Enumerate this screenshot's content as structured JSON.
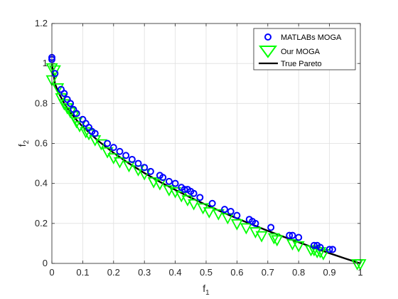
{
  "chart_data": {
    "type": "scatter",
    "xlabel": "f",
    "xlabel_sub": "1",
    "ylabel": "f",
    "ylabel_sub": "2",
    "xlim": [
      0,
      1
    ],
    "ylim": [
      0,
      1.2
    ],
    "xticks": [
      0,
      0.1,
      0.2,
      0.3,
      0.4,
      0.5,
      0.6,
      0.7,
      0.8,
      0.9,
      1
    ],
    "xtick_labels": [
      "0",
      "0.1",
      "0.2",
      "0.3",
      "0.4",
      "0.5",
      "0.6",
      "0.7",
      "0.8",
      "0.9",
      "1"
    ],
    "yticks": [
      0,
      0.2,
      0.4,
      0.6,
      0.8,
      1,
      1.2
    ],
    "ytick_labels": [
      "0",
      "0.2",
      "0.4",
      "0.6",
      "0.8",
      "1",
      "1.2"
    ],
    "grid": true,
    "legend_position": "top-right",
    "series": [
      {
        "name": "MATLABs MOGA",
        "marker": "circle",
        "color": "#0000ff",
        "points": [
          [
            0.0,
            1.03
          ],
          [
            0.0,
            1.02
          ],
          [
            0.01,
            0.95
          ],
          [
            0.03,
            0.87
          ],
          [
            0.04,
            0.85
          ],
          [
            0.05,
            0.82
          ],
          [
            0.06,
            0.8
          ],
          [
            0.07,
            0.77
          ],
          [
            0.08,
            0.75
          ],
          [
            0.1,
            0.72
          ],
          [
            0.11,
            0.7
          ],
          [
            0.12,
            0.68
          ],
          [
            0.13,
            0.66
          ],
          [
            0.14,
            0.65
          ],
          [
            0.18,
            0.6
          ],
          [
            0.2,
            0.58
          ],
          [
            0.22,
            0.56
          ],
          [
            0.24,
            0.54
          ],
          [
            0.26,
            0.52
          ],
          [
            0.28,
            0.5
          ],
          [
            0.3,
            0.48
          ],
          [
            0.32,
            0.46
          ],
          [
            0.35,
            0.44
          ],
          [
            0.36,
            0.43
          ],
          [
            0.38,
            0.41
          ],
          [
            0.4,
            0.4
          ],
          [
            0.42,
            0.38
          ],
          [
            0.43,
            0.37
          ],
          [
            0.44,
            0.37
          ],
          [
            0.45,
            0.36
          ],
          [
            0.46,
            0.35
          ],
          [
            0.48,
            0.33
          ],
          [
            0.52,
            0.3
          ],
          [
            0.56,
            0.27
          ],
          [
            0.58,
            0.26
          ],
          [
            0.6,
            0.24
          ],
          [
            0.64,
            0.22
          ],
          [
            0.65,
            0.21
          ],
          [
            0.66,
            0.2
          ],
          [
            0.71,
            0.18
          ],
          [
            0.77,
            0.14
          ],
          [
            0.78,
            0.14
          ],
          [
            0.8,
            0.13
          ],
          [
            0.85,
            0.09
          ],
          [
            0.86,
            0.09
          ],
          [
            0.87,
            0.08
          ],
          [
            0.9,
            0.07
          ],
          [
            0.91,
            0.07
          ]
        ]
      },
      {
        "name": "Our MOGA",
        "marker": "triangle-down",
        "color": "#00ff00",
        "points": [
          [
            0.0,
            0.98
          ],
          [
            0.01,
            0.97
          ],
          [
            0.0,
            0.92
          ],
          [
            0.02,
            0.88
          ],
          [
            0.03,
            0.83
          ],
          [
            0.04,
            0.8
          ],
          [
            0.05,
            0.78
          ],
          [
            0.06,
            0.76
          ],
          [
            0.07,
            0.74
          ],
          [
            0.08,
            0.71
          ],
          [
            0.09,
            0.69
          ],
          [
            0.11,
            0.66
          ],
          [
            0.12,
            0.65
          ],
          [
            0.14,
            0.62
          ],
          [
            0.16,
            0.6
          ],
          [
            0.18,
            0.56
          ],
          [
            0.2,
            0.53
          ],
          [
            0.22,
            0.51
          ],
          [
            0.25,
            0.49
          ],
          [
            0.28,
            0.47
          ],
          [
            0.3,
            0.45
          ],
          [
            0.33,
            0.41
          ],
          [
            0.35,
            0.4
          ],
          [
            0.38,
            0.37
          ],
          [
            0.4,
            0.36
          ],
          [
            0.42,
            0.34
          ],
          [
            0.44,
            0.32
          ],
          [
            0.46,
            0.3
          ],
          [
            0.49,
            0.28
          ],
          [
            0.51,
            0.26
          ],
          [
            0.54,
            0.25
          ],
          [
            0.57,
            0.23
          ],
          [
            0.6,
            0.2
          ],
          [
            0.63,
            0.18
          ],
          [
            0.66,
            0.16
          ],
          [
            0.68,
            0.14
          ],
          [
            0.72,
            0.13
          ],
          [
            0.73,
            0.12
          ],
          [
            0.78,
            0.1
          ],
          [
            0.8,
            0.09
          ],
          [
            0.84,
            0.07
          ],
          [
            0.85,
            0.07
          ],
          [
            0.86,
            0.06
          ],
          [
            0.87,
            0.06
          ],
          [
            0.88,
            0.05
          ],
          [
            0.99,
            0.0
          ],
          [
            1.0,
            0.0
          ]
        ]
      },
      {
        "name": "True Pareto",
        "marker": "line",
        "color": "#000000",
        "points": [
          [
            0.0,
            1.0
          ],
          [
            0.01,
            0.9
          ],
          [
            0.02,
            0.859
          ],
          [
            0.04,
            0.8
          ],
          [
            0.06,
            0.755
          ],
          [
            0.08,
            0.717
          ],
          [
            0.1,
            0.684
          ],
          [
            0.15,
            0.613
          ],
          [
            0.2,
            0.553
          ],
          [
            0.25,
            0.5
          ],
          [
            0.3,
            0.452
          ],
          [
            0.35,
            0.408
          ],
          [
            0.4,
            0.368
          ],
          [
            0.45,
            0.329
          ],
          [
            0.5,
            0.293
          ],
          [
            0.55,
            0.258
          ],
          [
            0.6,
            0.225
          ],
          [
            0.65,
            0.194
          ],
          [
            0.7,
            0.163
          ],
          [
            0.75,
            0.134
          ],
          [
            0.8,
            0.106
          ],
          [
            0.85,
            0.078
          ],
          [
            0.9,
            0.051
          ],
          [
            0.95,
            0.025
          ],
          [
            1.0,
            0.0
          ]
        ]
      }
    ]
  }
}
